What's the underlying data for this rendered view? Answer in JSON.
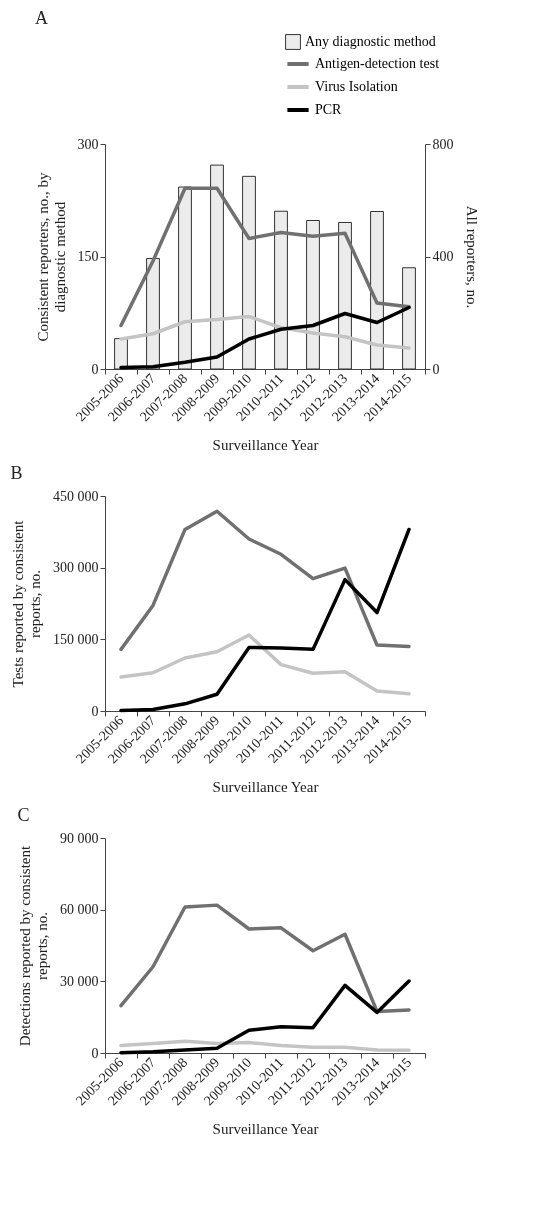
{
  "chart_data": [
    {
      "type": "line",
      "title": "A",
      "xlabel": "Surveillance Year",
      "ylabel": "Consistent reporters, no., by diagnostic method",
      "y2label": "All reporters, no.",
      "categories": [
        "2005-2006",
        "2006-2007",
        "2007-2008",
        "2008-2009",
        "2009-2010",
        "2010-2011",
        "2011-2012",
        "2012-2013",
        "2013-2014",
        "2014-2015"
      ],
      "series": [
        {
          "name": "Any diagnostic method",
          "type": "bar",
          "axis": "y2",
          "color": "#ececec",
          "values": [
            108,
            393,
            647,
            725,
            685,
            561,
            528,
            521,
            560,
            360
          ]
        },
        {
          "name": "Antigen-detection test",
          "color": "#707070",
          "values": [
            58,
            144,
            241,
            241,
            174,
            182,
            177,
            181,
            88,
            83
          ]
        },
        {
          "name": "Virus Isolation",
          "color": "#c4c4c4",
          "values": [
            40,
            47,
            63,
            66,
            70,
            55,
            48,
            43,
            32,
            28
          ]
        },
        {
          "name": "PCR",
          "color": "#000000",
          "values": [
            2,
            3,
            9,
            16,
            40,
            53,
            58,
            74,
            62,
            82
          ]
        }
      ],
      "ylim": [
        0,
        300
      ],
      "yticks": [
        0,
        150,
        300
      ],
      "y2lim": [
        0,
        800
      ],
      "y2ticks": [
        0,
        400,
        800
      ],
      "legend": "top right",
      "marker": "none"
    },
    {
      "type": "line",
      "title": "B",
      "xlabel": "Surveillance Year",
      "ylabel": "Tests reported by consistent reports, no.",
      "categories": [
        "2005-2006",
        "2006-2007",
        "2007-2008",
        "2008-2009",
        "2009-2010",
        "2010-2011",
        "2011-2012",
        "2012-2013",
        "2013-2014",
        "2014-2015"
      ],
      "series": [
        {
          "color": "#707070",
          "values": [
            129000,
            221000,
            380000,
            418000,
            360000,
            328000,
            277000,
            299000,
            138000,
            135000
          ]
        },
        {
          "color": "#c4c4c4",
          "values": [
            71000,
            80000,
            111000,
            124000,
            159000,
            97000,
            79000,
            82000,
            42000,
            36000
          ]
        },
        {
          "color": "#000000",
          "values": [
            1000,
            3000,
            15000,
            35000,
            133000,
            132000,
            129000,
            275000,
            206000,
            380000
          ]
        }
      ],
      "ylim": [
        0,
        450000
      ],
      "yticks": [
        0,
        {
          "value": 150000,
          "label": "150 000"
        },
        {
          "value": 300000,
          "label": "300 000"
        },
        {
          "value": 450000,
          "label": "450 000"
        }
      ],
      "marker": "none"
    },
    {
      "type": "line",
      "title": "C",
      "xlabel": "Surveillance Year",
      "ylabel": "Detections reported by consistent reports, no.",
      "categories": [
        "2005-2006",
        "2006-2007",
        "2007-2008",
        "2008-2009",
        "2009-2010",
        "2010-2011",
        "2011-2012",
        "2012-2013",
        "2013-2014",
        "2014-2015"
      ],
      "series": [
        {
          "color": "#707070",
          "values": [
            19800,
            36100,
            61100,
            61900,
            51900,
            52400,
            42800,
            49700,
            17400,
            18000
          ]
        },
        {
          "color": "#c4c4c4",
          "values": [
            3100,
            4000,
            4900,
            4000,
            4400,
            3100,
            2400,
            2400,
            1300,
            1200
          ]
        },
        {
          "color": "#000000",
          "values": [
            100,
            500,
            1300,
            2000,
            9500,
            11000,
            10600,
            28300,
            17000,
            30100
          ]
        }
      ],
      "ylim": [
        0,
        90000
      ],
      "yticks": [
        0,
        {
          "value": 30000,
          "label": "30 000"
        },
        {
          "value": 60000,
          "label": "60 000"
        },
        {
          "value": 90000,
          "label": "90 000"
        }
      ],
      "marker": "none"
    }
  ]
}
